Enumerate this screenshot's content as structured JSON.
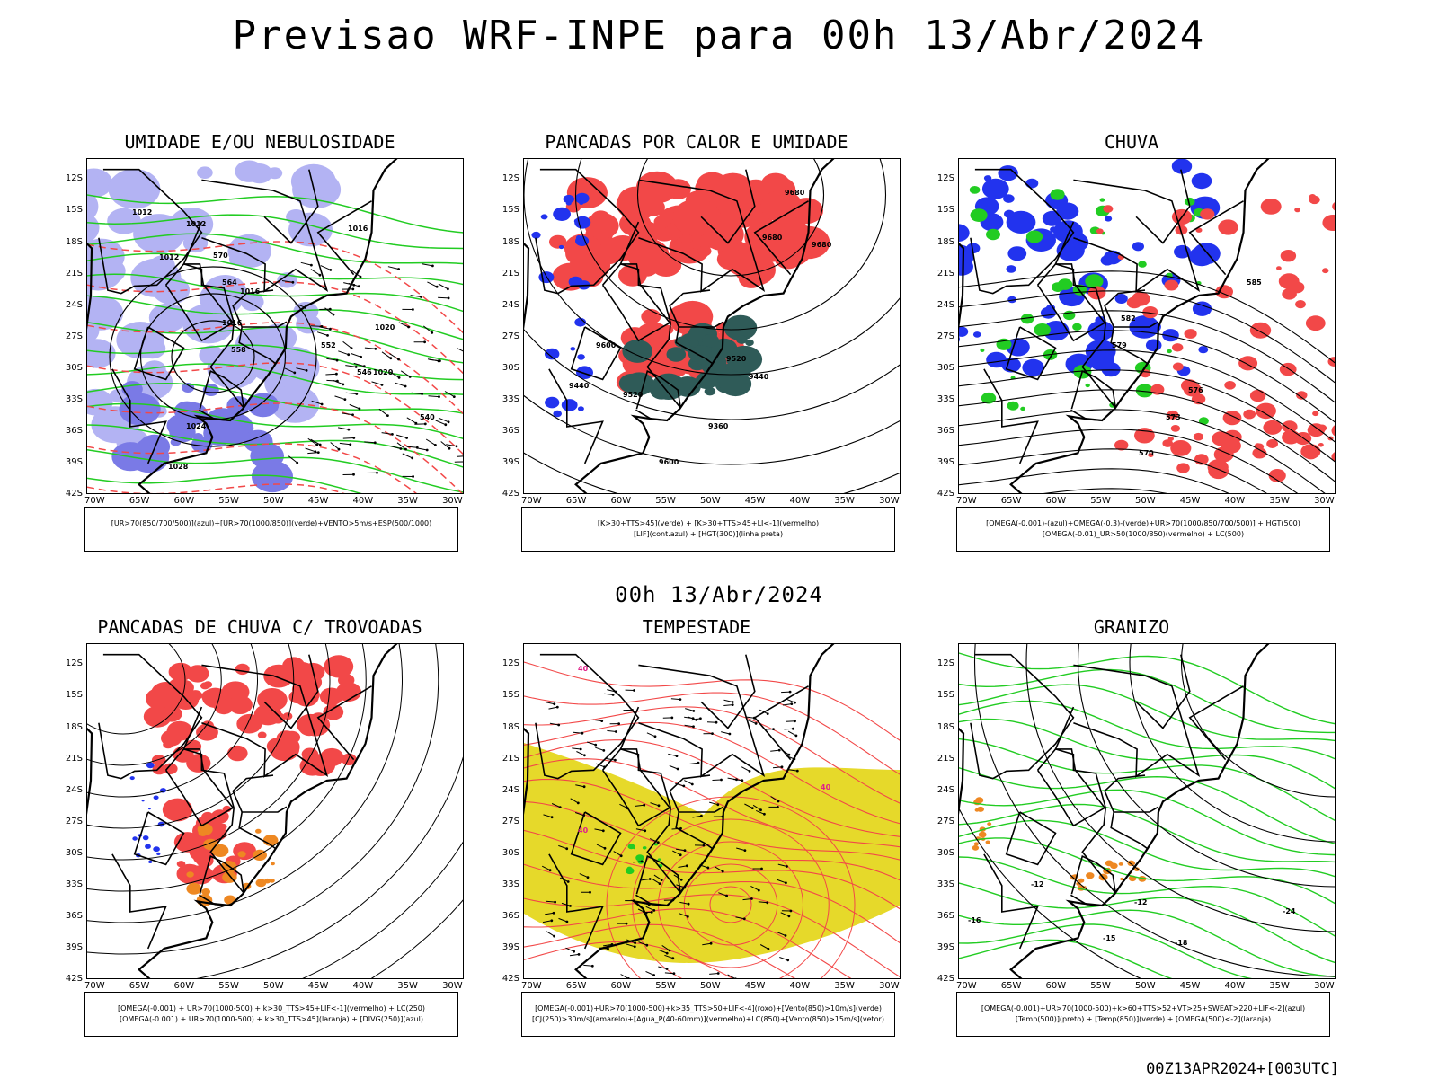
{
  "header": {
    "title": "Previsao WRF-INPE  para 00h 13/Abr/2024",
    "mid_date": "00h 13/Abr/2024",
    "footer": "00Z13APR2024+[003UTC]"
  },
  "axes": {
    "lat_labels": [
      "12S",
      "15S",
      "18S",
      "21S",
      "24S",
      "27S",
      "30S",
      "33S",
      "36S",
      "39S",
      "42S"
    ],
    "lon_labels": [
      "70W",
      "65W",
      "60W",
      "55W",
      "50W",
      "45W",
      "40W",
      "35W",
      "30W"
    ]
  },
  "colors": {
    "red": "#f24848",
    "green": "#22cc22",
    "blue": "#2233ee",
    "lavender": "#b3b3f3",
    "darkteal": "#2f5b58",
    "yellow": "#e6d92a",
    "orange": "#ee8822"
  },
  "panels": [
    {
      "title": "UMIDADE E/OU NEBULOSIDADE",
      "legend": [
        "[UR>70(850/700/500)](azul)+[UR>70(1000/850)](verde)+VENTO>5m/s+ESP(500/1000)"
      ],
      "contour_labels": [
        "1012",
        "1012",
        "1012",
        "1016",
        "1016",
        "1016",
        "1020",
        "1020",
        "1024",
        "1028",
        "570",
        "564",
        "558",
        "552",
        "546",
        "540"
      ]
    },
    {
      "title": "PANCADAS POR CALOR E UMIDADE",
      "legend": [
        "[K>30+TTS>45](verde) + [K>30+TTS>45+LI<-1](vermelho)",
        "[LIF](cont.azul) + [HGT(300)](linha preta)"
      ],
      "contour_labels": [
        "9680",
        "9680",
        "9680",
        "9600",
        "9520",
        "9440",
        "9360",
        "9600",
        "9520",
        "9440"
      ]
    },
    {
      "title": "CHUVA",
      "legend": [
        "[OMEGA(-0.001)-(azul)+OMEGA(-0.3)-(verde)+UR>70(1000/850/700/500)] + HGT(500)",
        "[OMEGA(-0.01)_UR>50(1000/850)(vermelho) + LC(500)"
      ],
      "contour_labels": [
        "585",
        "582",
        "579",
        "576",
        "573",
        "570"
      ]
    },
    {
      "title": "PANCADAS DE CHUVA C/ TROVOADAS",
      "legend": [
        "[OMEGA(-0.001) + UR>70(1000-500) + k>30_TTS>45+LIF<-1](vermelho) + LC(250)",
        "[OMEGA(-0.001) + UR>70(1000-500) + k>30_TTS>45](laranja) + [DIVG(250)](azul)"
      ],
      "contour_labels": []
    },
    {
      "title": "TEMPESTADE",
      "legend": [
        "[OMEGA(-0.001)+UR>70(1000-500)+k>35_TTS>50+LIF<-4](roxo)+[Vento(850)>10m/s](verde)",
        "[CJ(250)>30m/s](amarelo)+[Agua_P(40-60mm)](vermelho)+LC(850)+[Vento(850)>15m/s](vetor)"
      ],
      "contour_labels": [
        "40",
        "40",
        "40"
      ]
    },
    {
      "title": "GRANIZO",
      "legend": [
        "[OMEGA(-0.001)+UR>70(1000-500)+k>60+TTS>52+VT>25+SWEAT>220+LIF<-2](azul)",
        "[Temp(500)](preto) + [Temp(850)](verde) + [OMEGA(500)<-2](laranja)"
      ],
      "contour_labels": [
        "-12",
        "-12",
        "-15",
        "-18",
        "-24",
        "-16"
      ]
    }
  ]
}
